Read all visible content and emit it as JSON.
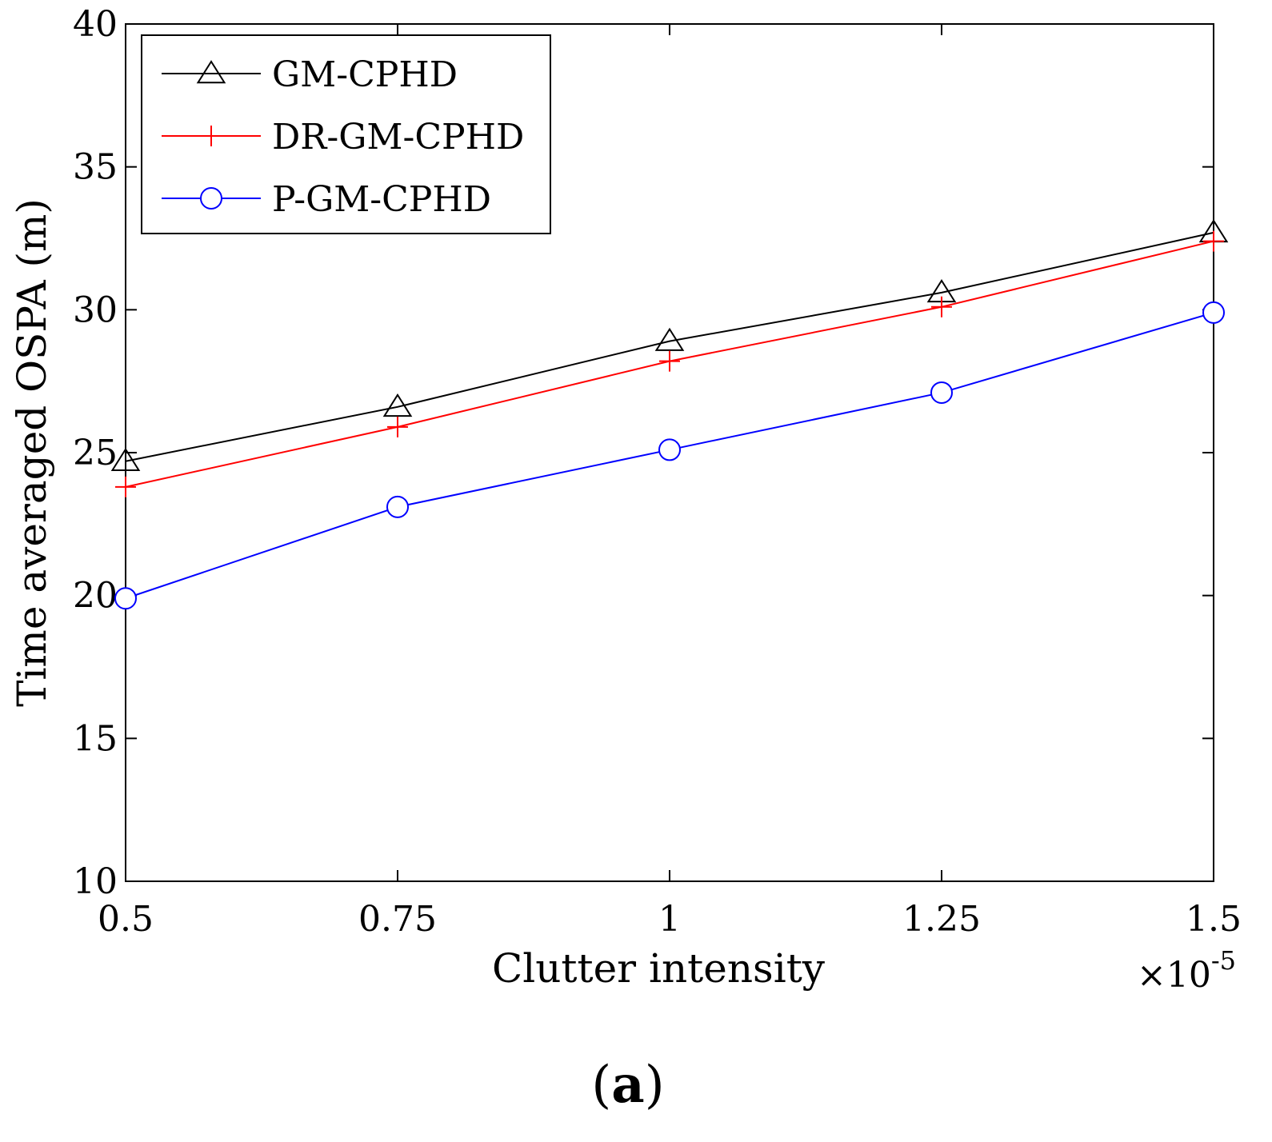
{
  "chart_data": {
    "type": "line",
    "xlabel": "Clutter intensity",
    "x_multiplier": "×10",
    "x_multiplier_exponent": "-5",
    "ylabel": "Time averaged OSPA (m)",
    "xlim": [
      0.5,
      1.5
    ],
    "ylim": [
      10,
      40
    ],
    "x_ticks": [
      0.5,
      0.75,
      1,
      1.25,
      1.5
    ],
    "x_tick_labels": [
      "0.5",
      "0.75",
      "1",
      "1.25",
      "1.5"
    ],
    "y_ticks": [
      10,
      15,
      20,
      25,
      30,
      35,
      40
    ],
    "y_tick_labels": [
      "10",
      "15",
      "20",
      "25",
      "30",
      "35",
      "40"
    ],
    "grid": false,
    "legend_position": "top-left",
    "x": [
      0.5,
      0.75,
      1,
      1.25,
      1.5
    ],
    "series": [
      {
        "name": "GM-CPHD",
        "color": "#000000",
        "marker": "triangle",
        "values": [
          24.7,
          26.6,
          28.9,
          30.6,
          32.7
        ]
      },
      {
        "name": "DR-GM-CPHD",
        "color": "#ff0000",
        "marker": "plus",
        "values": [
          23.8,
          25.9,
          28.2,
          30.1,
          32.4
        ]
      },
      {
        "name": "P-GM-CPHD",
        "color": "#0000ff",
        "marker": "circle",
        "values": [
          19.9,
          23.1,
          25.1,
          27.1,
          29.9
        ]
      }
    ],
    "panel_label": {
      "open": "(",
      "letter": "a",
      "close": ")"
    }
  }
}
